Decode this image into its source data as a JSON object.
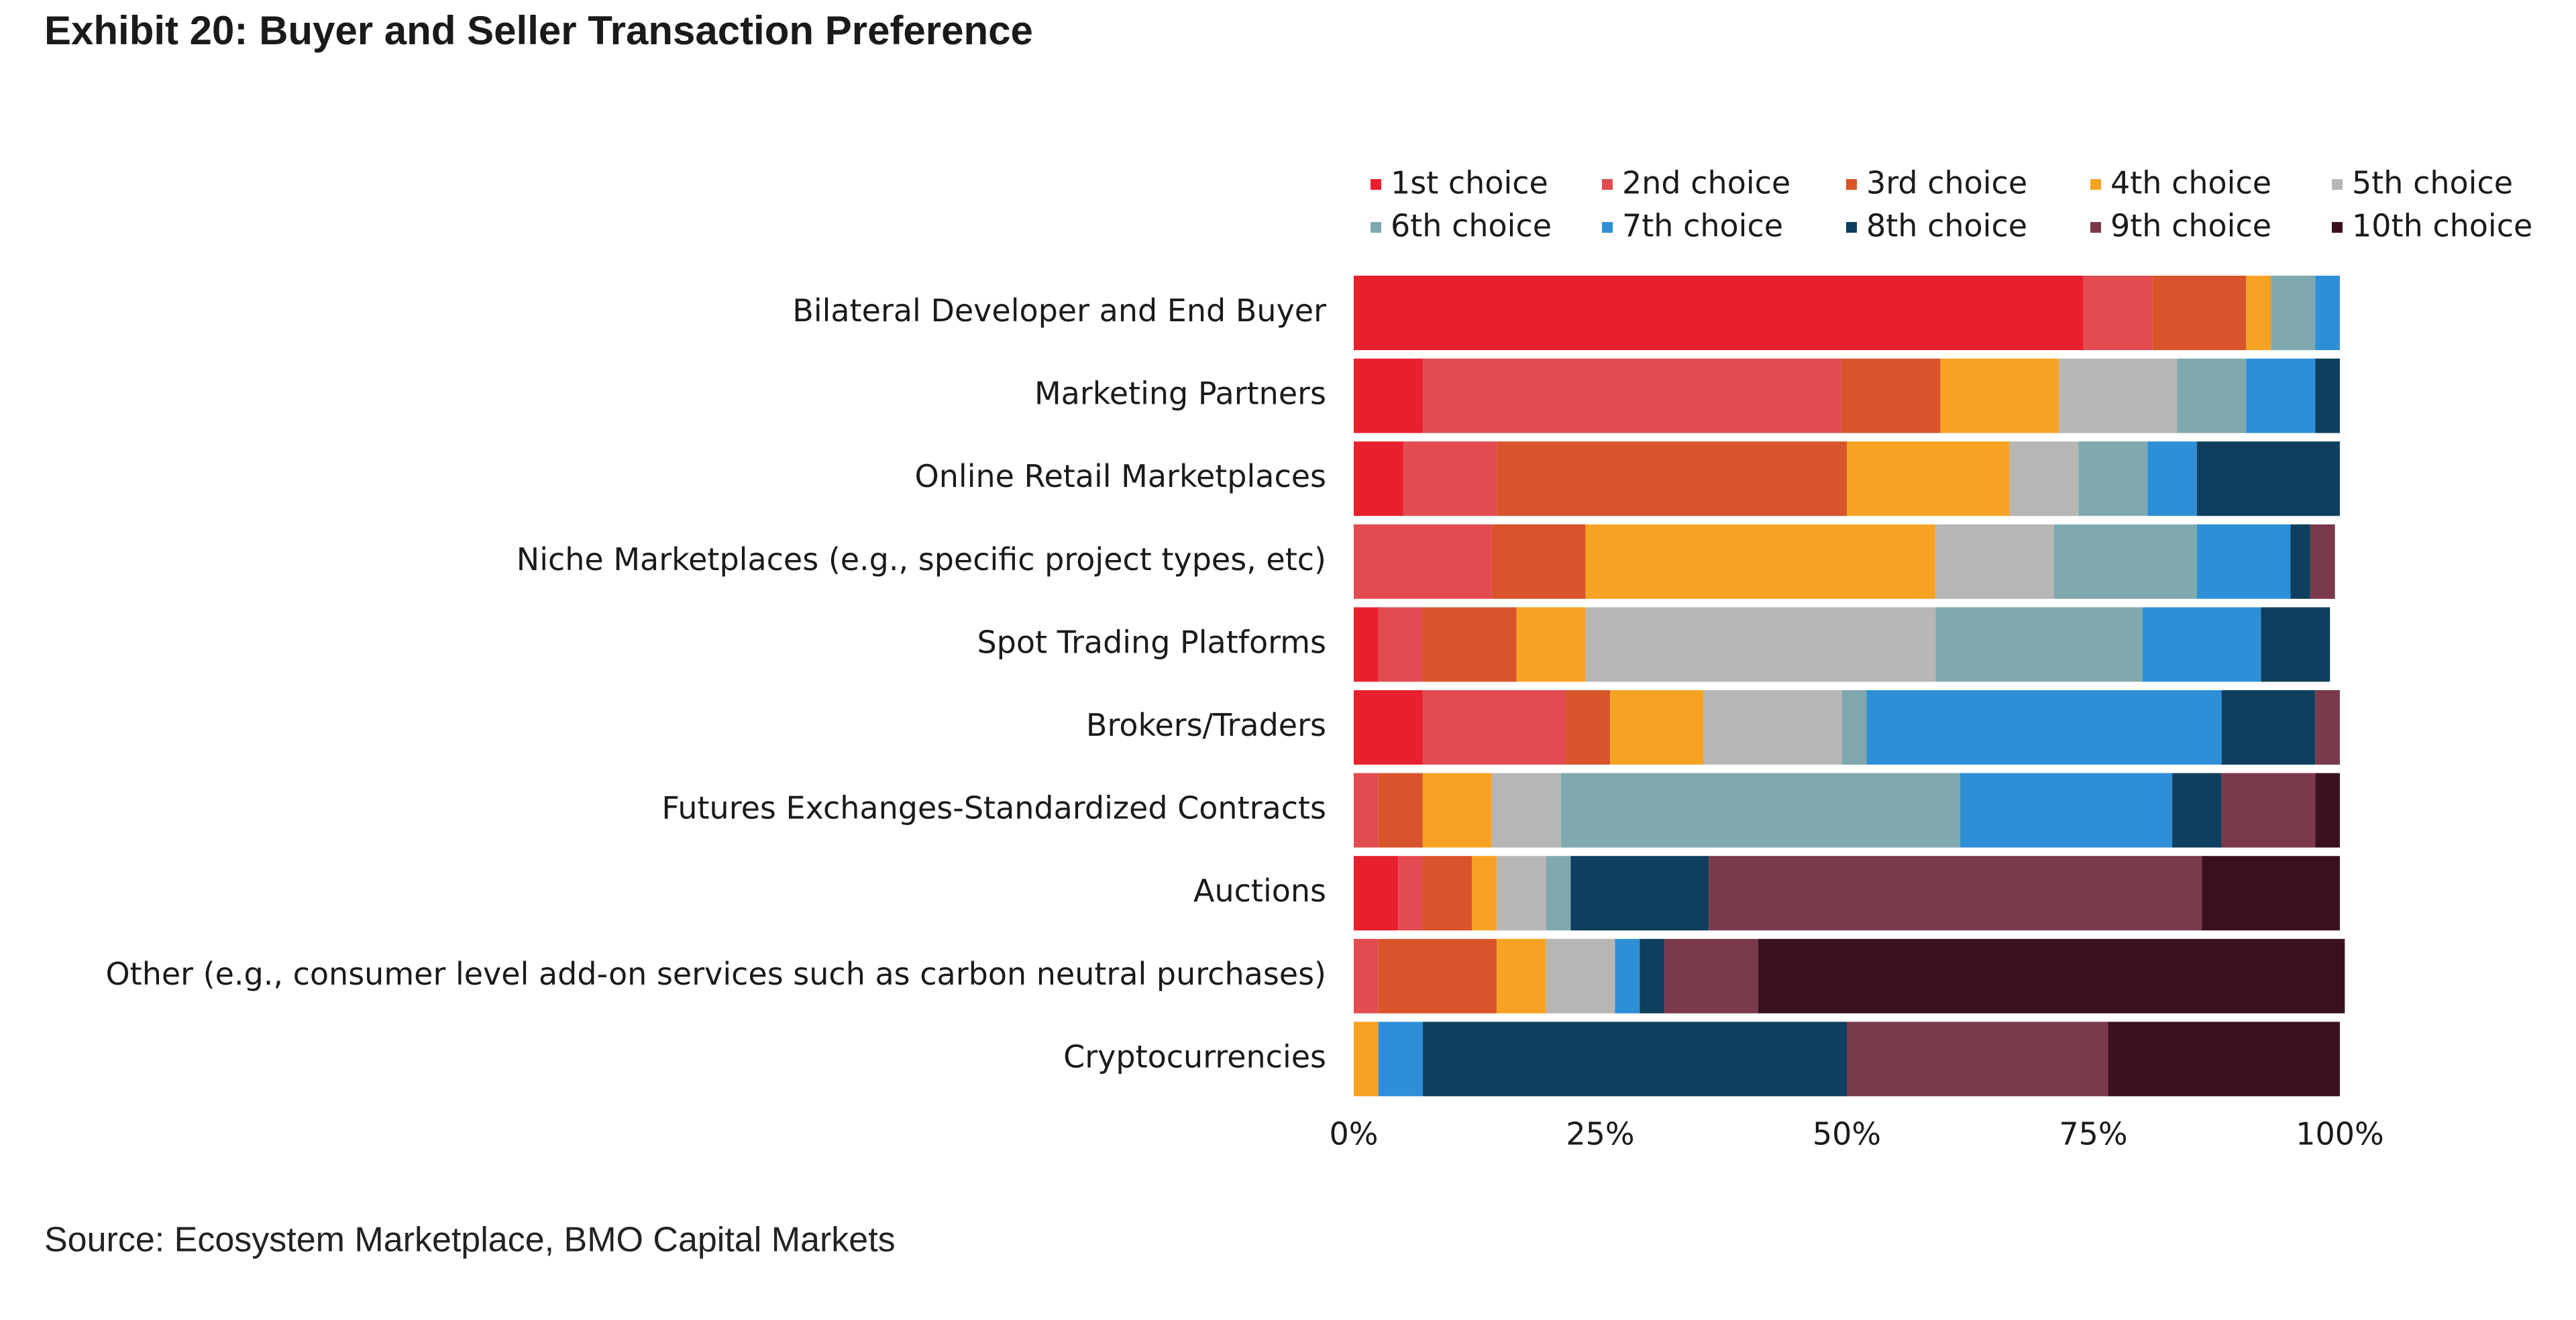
{
  "chart_data": {
    "type": "stacked-bar-horizontal",
    "title": "Exhibit 20: Buyer and Seller Transaction Preference",
    "source": "Source: Ecosystem Marketplace, BMO Capital Markets",
    "categories": [
      "Bilateral Developer and End Buyer",
      "Marketing Partners",
      "Online Retail Marketplaces",
      "Niche Marketplaces (e.g., specific project types, etc)",
      "Spot Trading Platforms",
      "Brokers/Traders",
      "Futures Exchanges-Standardized Contracts",
      "Auctions",
      "Other (e.g., consumer level add-on services such as carbon neutral purchases)",
      "Cryptocurrencies"
    ],
    "series": [
      {
        "name": "1st choice",
        "color": "#e8202e",
        "values": [
          74,
          7,
          5,
          0,
          2.5,
          7,
          0,
          4.5,
          0,
          0
        ]
      },
      {
        "name": "2nd choice",
        "color": "#e24c50",
        "values": [
          7,
          42.5,
          9.5,
          14,
          4.5,
          14.5,
          2.5,
          2.5,
          2.5,
          0
        ]
      },
      {
        "name": "3rd choice",
        "color": "#d9542b",
        "values": [
          9.5,
          10,
          35.5,
          9.5,
          9.5,
          4.5,
          4.5,
          5,
          12,
          0
        ]
      },
      {
        "name": "4th choice",
        "color": "#f6a323",
        "values": [
          2.5,
          12,
          16.5,
          35.5,
          7,
          9.5,
          7,
          2.5,
          5,
          2.5
        ]
      },
      {
        "name": "5th choice",
        "color": "#b8b6b5",
        "values": [
          0,
          12,
          7,
          12,
          35.5,
          14,
          7,
          5,
          7,
          0
        ]
      },
      {
        "name": "6th choice",
        "color": "#7fa9ae",
        "values": [
          4.5,
          7,
          7,
          14.5,
          21,
          2.5,
          40.5,
          2.5,
          0,
          0
        ]
      },
      {
        "name": "7th choice",
        "color": "#2e8fd6",
        "values": [
          2.5,
          7,
          5,
          9.5,
          12,
          36,
          21.5,
          0,
          2.5,
          4.5
        ]
      },
      {
        "name": "8th choice",
        "color": "#0e3f5e",
        "values": [
          0,
          2.5,
          14.5,
          2,
          7,
          9.5,
          5,
          14,
          2.5,
          43
        ]
      },
      {
        "name": "9th choice",
        "color": "#7a3a4c",
        "values": [
          0,
          0,
          0,
          2.5,
          0,
          2.5,
          9.5,
          50,
          9.5,
          26.5
        ]
      },
      {
        "name": "10th choice",
        "color": "#3a1020",
        "values": [
          0,
          0,
          0,
          0,
          0,
          0,
          2.5,
          14,
          59.5,
          23.5
        ]
      }
    ],
    "xlim": [
      0,
      100
    ],
    "xticks": [
      {
        "value": 0,
        "label": "0%"
      },
      {
        "value": 25,
        "label": "25%"
      },
      {
        "value": 50,
        "label": "50%"
      },
      {
        "value": 75,
        "label": "75%"
      },
      {
        "value": 100,
        "label": "100%"
      }
    ]
  }
}
